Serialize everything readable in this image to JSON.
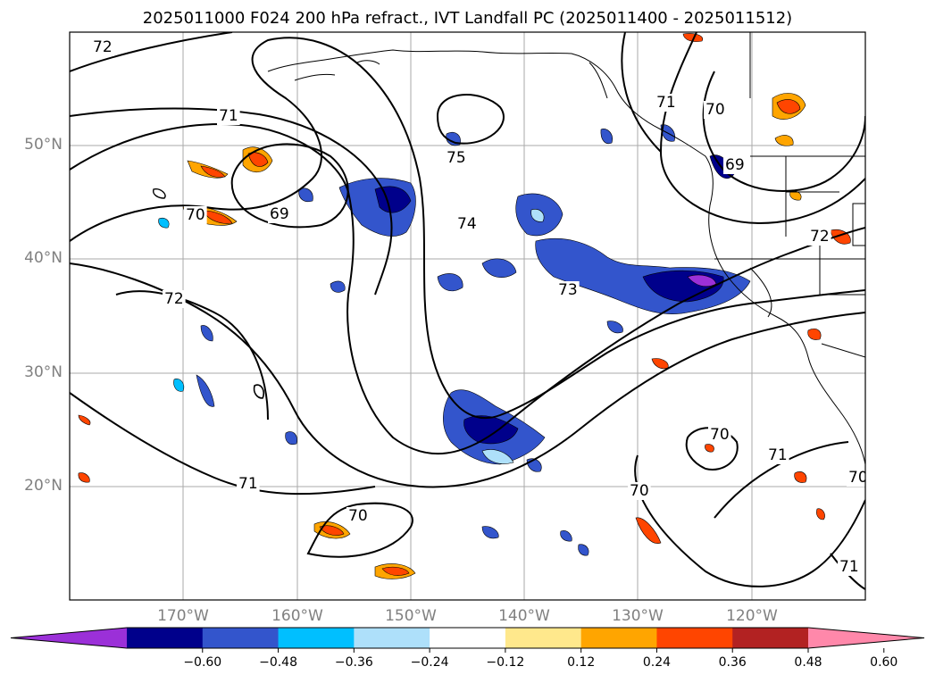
{
  "title": "2025011000 F024 200 hPa refract., IVT Landfall PC (2025011400 - 2025011512)",
  "lat_labels": [
    "50°N",
    "40°N",
    "30°N",
    "20°N"
  ],
  "lon_labels": [
    "170°W",
    "160°W",
    "150°W",
    "140°W",
    "130°W",
    "120°W"
  ],
  "contour_labels": [
    "72",
    "71",
    "69",
    "70",
    "75",
    "74",
    "72",
    "73",
    "71",
    "70",
    "69",
    "72",
    "70",
    "71",
    "71",
    "70",
    "70",
    "71",
    "70"
  ],
  "colorbar": {
    "ticks": [
      "−0.60",
      "−0.48",
      "−0.36",
      "−0.24",
      "−0.12",
      "0.12",
      "0.24",
      "0.36",
      "0.48",
      "0.60"
    ],
    "colors": [
      "#9b30d8",
      "#00008b",
      "#3355cc",
      "#00bfff",
      "#aee0fa",
      "#ffffff",
      "#ffe88c",
      "#ffa500",
      "#ff4500",
      "#b22222",
      "#ff88aa"
    ]
  }
}
